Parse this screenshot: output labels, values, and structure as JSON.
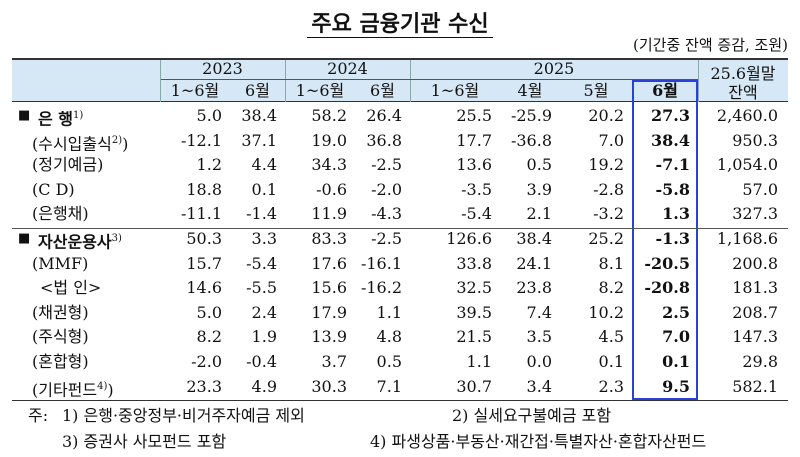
{
  "title": "주요 금융기관 수신",
  "unit": "(기간중 잔액 증감, 조원)",
  "header": {
    "groups": [
      "2023",
      "2024",
      "2025"
    ],
    "last": [
      "25.6월말",
      "잔액"
    ],
    "sub": [
      "1~6월",
      "6월",
      "1~6월",
      "6월",
      "1~6월",
      "4월",
      "5월",
      "6월"
    ]
  },
  "rows": [
    {
      "label": "은 행",
      "note": "1)",
      "bullet": true,
      "values": [
        "5.0",
        "38.4",
        "58.2",
        "26.4",
        "25.5",
        "-25.9",
        "20.2",
        "27.3",
        "2,460.0"
      ]
    },
    {
      "label": "(수시입출식",
      "note": "2)",
      "tail": ")",
      "values": [
        "-12.1",
        "37.1",
        "19.0",
        "36.8",
        "17.7",
        "-36.8",
        "7.0",
        "38.4",
        "950.3"
      ]
    },
    {
      "label": "(정기예금)",
      "values": [
        "1.2",
        "4.4",
        "34.3",
        "-2.5",
        "13.6",
        "0.5",
        "19.2",
        "-7.1",
        "1,054.0"
      ]
    },
    {
      "label": "(C D)",
      "values": [
        "18.8",
        "0.1",
        "-0.6",
        "-2.0",
        "-3.5",
        "3.9",
        "-2.8",
        "-5.8",
        "57.0"
      ]
    },
    {
      "label": "(은행채)",
      "values": [
        "-11.1",
        "-1.4",
        "11.9",
        "-4.3",
        "-5.4",
        "2.1",
        "-3.2",
        "1.3",
        "327.3"
      ]
    },
    {
      "label": "자산운용사",
      "note": "3)",
      "bullet": true,
      "values": [
        "50.3",
        "3.3",
        "83.3",
        "-2.5",
        "126.6",
        "38.4",
        "25.2",
        "-1.3",
        "1,168.6"
      ]
    },
    {
      "label": "(MMF)",
      "values": [
        "15.7",
        "-5.4",
        "17.6",
        "-16.1",
        "33.8",
        "24.1",
        "8.1",
        "-20.5",
        "200.8"
      ]
    },
    {
      "label": "<법 인>",
      "values": [
        "14.6",
        "-5.5",
        "15.6",
        "-16.2",
        "32.5",
        "23.8",
        "8.2",
        "-20.8",
        "181.3"
      ]
    },
    {
      "label": "(채권형)",
      "values": [
        "5.0",
        "2.4",
        "17.9",
        "1.1",
        "39.5",
        "7.4",
        "10.2",
        "2.5",
        "208.7"
      ]
    },
    {
      "label": "(주식형)",
      "values": [
        "8.2",
        "1.9",
        "13.9",
        "4.8",
        "21.5",
        "3.5",
        "4.5",
        "7.0",
        "147.3"
      ]
    },
    {
      "label": "(혼합형)",
      "values": [
        "-2.0",
        "-0.4",
        "3.7",
        "0.5",
        "1.1",
        "0.0",
        "0.1",
        "0.1",
        "29.8"
      ]
    },
    {
      "label": "(기타펀드",
      "note": "4)",
      "tail": ")",
      "values": [
        "23.3",
        "4.9",
        "30.3",
        "7.1",
        "30.7",
        "3.4",
        "2.3",
        "9.5",
        "582.1"
      ]
    }
  ],
  "footnotes": {
    "prefix": "주:",
    "items": [
      "1) 은행·중앙정부·비거주자예금 제외",
      "2) 실세요구불예금 포함",
      "3) 증권사 사모펀드 포함",
      "4) 파생상품·부동산·재간접·특별자산·혼합자산펀드"
    ]
  }
}
